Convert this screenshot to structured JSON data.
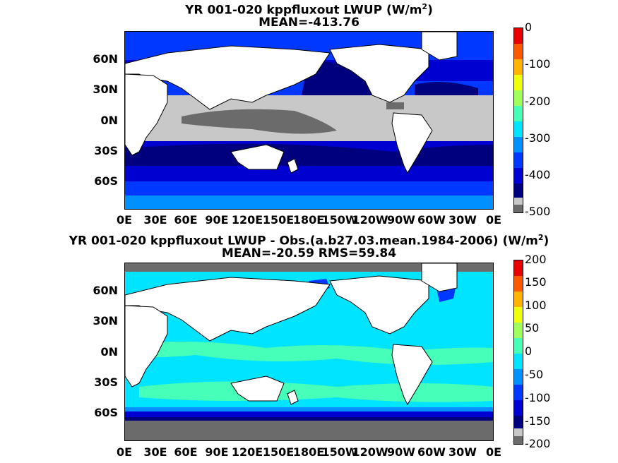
{
  "panel1": {
    "title_line1": "YR 001-020 kppfluxout  LWUP (W/m",
    "title_sup": "2",
    "title_close": ")",
    "title_line2": "MEAN=-413.76",
    "colorbar_labels": [
      "0",
      "-100",
      "-200",
      "-300",
      "-400",
      "-500"
    ]
  },
  "panel2": {
    "title_line1": "YR 001-020 kppfluxout LWUP - Obs.(a.b27.03.mean.1984-2006) (W/m",
    "title_sup": "2",
    "title_close": ")",
    "title_line2": "MEAN=-20.59 RMS=59.84",
    "colorbar_labels": [
      "200",
      "150",
      "100",
      "50",
      "0",
      "-50",
      "-100",
      "-150",
      "-200"
    ]
  },
  "lat_labels": [
    "60N",
    "30N",
    "0N",
    "30S",
    "60S"
  ],
  "lon_labels": [
    "0E",
    "30E",
    "60E",
    "90E",
    "120E",
    "150E",
    "180E",
    "150W",
    "120W",
    "90W",
    "60W",
    "30W",
    "0E"
  ],
  "colors": {
    "colormap": [
      "#6b6b6b",
      "#c8c8c8",
      "#00007f",
      "#0000d0",
      "#0038ff",
      "#0090ff",
      "#00e4ff",
      "#46ffb8",
      "#a0ff5a",
      "#f0ff0a",
      "#ffb400",
      "#ff5a00",
      "#e80000"
    ],
    "land": "#ffffff",
    "coast": "#000000"
  }
}
